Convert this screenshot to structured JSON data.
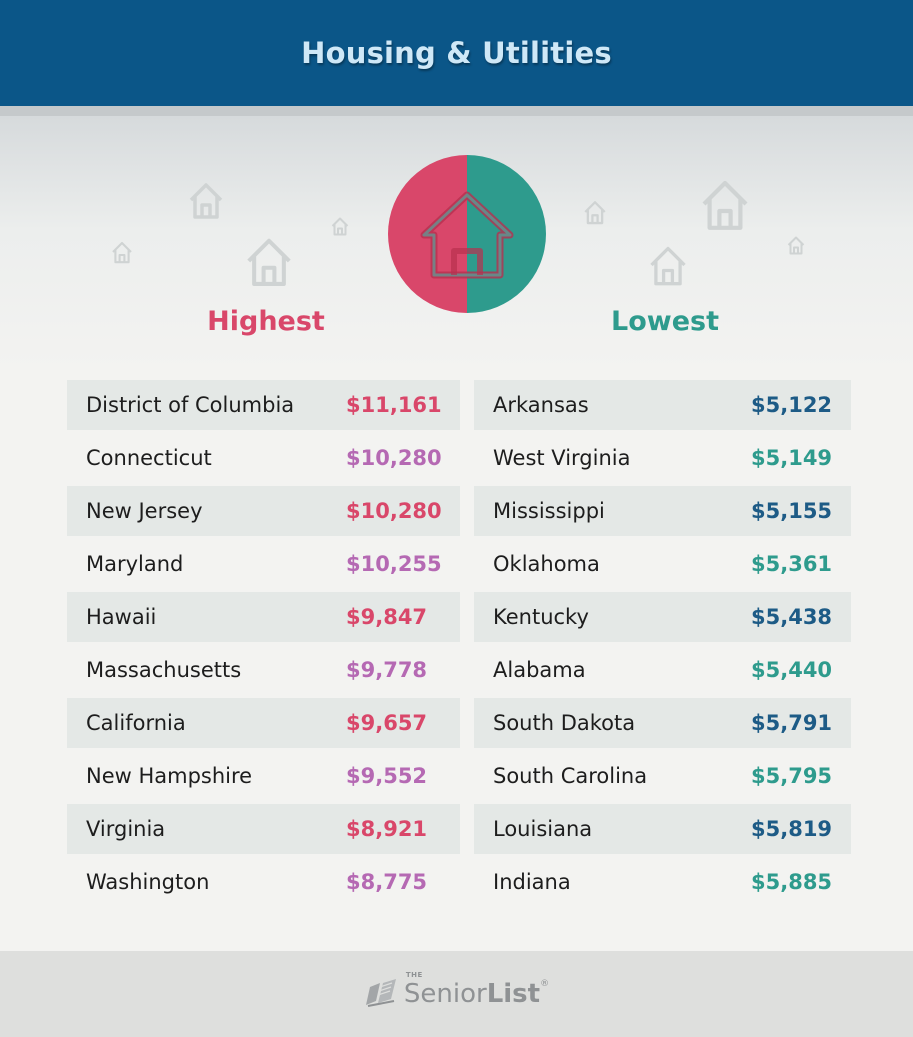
{
  "header": {
    "title": "Housing & Utilities"
  },
  "colors": {
    "header_bg": "#0b5688",
    "highest_accent": "#d9476a",
    "highest_alt": "#b569b3",
    "lowest_accent": "#2e9b8d",
    "lowest_alt": "#1d5b86"
  },
  "icons": [
    "house-icon",
    "half-circle-badge",
    "book-logo-icon"
  ],
  "highest": {
    "heading": "Highest",
    "rows": [
      {
        "state": "District of Columbia",
        "value": "$11,161"
      },
      {
        "state": "Connecticut",
        "value": "$10,280"
      },
      {
        "state": "New Jersey",
        "value": "$10,280"
      },
      {
        "state": "Maryland",
        "value": "$10,255"
      },
      {
        "state": "Hawaii",
        "value": "$9,847"
      },
      {
        "state": "Massachusetts",
        "value": "$9,778"
      },
      {
        "state": "California",
        "value": "$9,657"
      },
      {
        "state": "New Hampshire",
        "value": "$9,552"
      },
      {
        "state": "Virginia",
        "value": "$8,921"
      },
      {
        "state": "Washington",
        "value": "$8,775"
      }
    ]
  },
  "lowest": {
    "heading": "Lowest",
    "rows": [
      {
        "state": "Arkansas",
        "value": "$5,122"
      },
      {
        "state": "West Virginia",
        "value": "$5,149"
      },
      {
        "state": "Mississippi",
        "value": "$5,155"
      },
      {
        "state": "Oklahoma",
        "value": "$5,361"
      },
      {
        "state": "Kentucky",
        "value": "$5,438"
      },
      {
        "state": "Alabama",
        "value": "$5,440"
      },
      {
        "state": "South Dakota",
        "value": "$5,791"
      },
      {
        "state": "South Carolina",
        "value": "$5,795"
      },
      {
        "state": "Louisiana",
        "value": "$5,819"
      },
      {
        "state": "Indiana",
        "value": "$5,885"
      }
    ]
  },
  "footer": {
    "logo_the": "THE",
    "logo_senior": "Senior",
    "logo_list": "List",
    "logo_tm": "®"
  }
}
